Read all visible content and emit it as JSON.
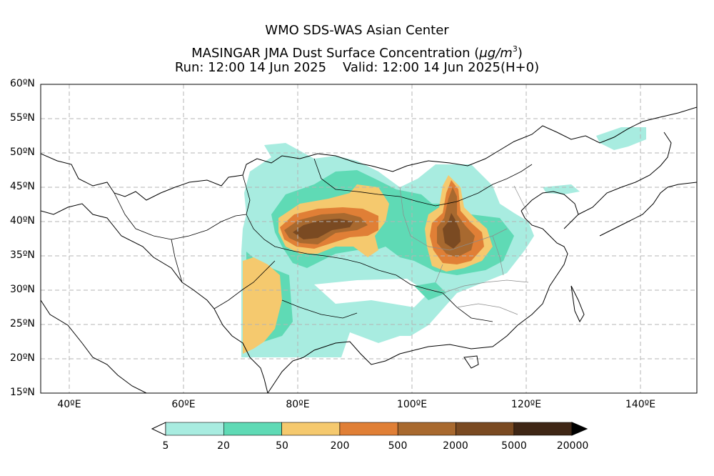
{
  "header": {
    "line1": "WMO SDS-WAS Asian Center",
    "line2_prefix": "MASINGAR JMA Dust Surface Concentration (",
    "line2_unit": "μg/m",
    "line2_exp": "3",
    "line2_suffix": ")",
    "run_label": "Run: 12:00 14 Jun 2025",
    "valid_label": "Valid: 12:00 14 Jun 2025(H+0)"
  },
  "map": {
    "lat_labels": [
      "60ºN",
      "55ºN",
      "50ºN",
      "45ºN",
      "40ºN",
      "35ºN",
      "30ºN",
      "25ºN",
      "20ºN",
      "15ºN"
    ],
    "lon_labels": [
      "40ºE",
      "60ºE",
      "80ºE",
      "100ºE",
      "120ºE",
      "140ºE"
    ],
    "colors": {
      "c5": "#a8ece0",
      "c20": "#5fdab5",
      "c50": "#f5c96e",
      "c200": "#e07f36",
      "c500": "#a8692f",
      "c2000": "#7a4a22",
      "c5000": "#3f2615"
    }
  },
  "colorbar": {
    "labels": [
      "5",
      "20",
      "50",
      "200",
      "500",
      "2000",
      "5000",
      "20000"
    ],
    "colors": [
      "#a8ece0",
      "#5fdab5",
      "#f5c96e",
      "#e07f36",
      "#a8692f",
      "#7a4a22",
      "#3f2615"
    ],
    "under_color": "#ffffff",
    "over_color": "#000000"
  }
}
